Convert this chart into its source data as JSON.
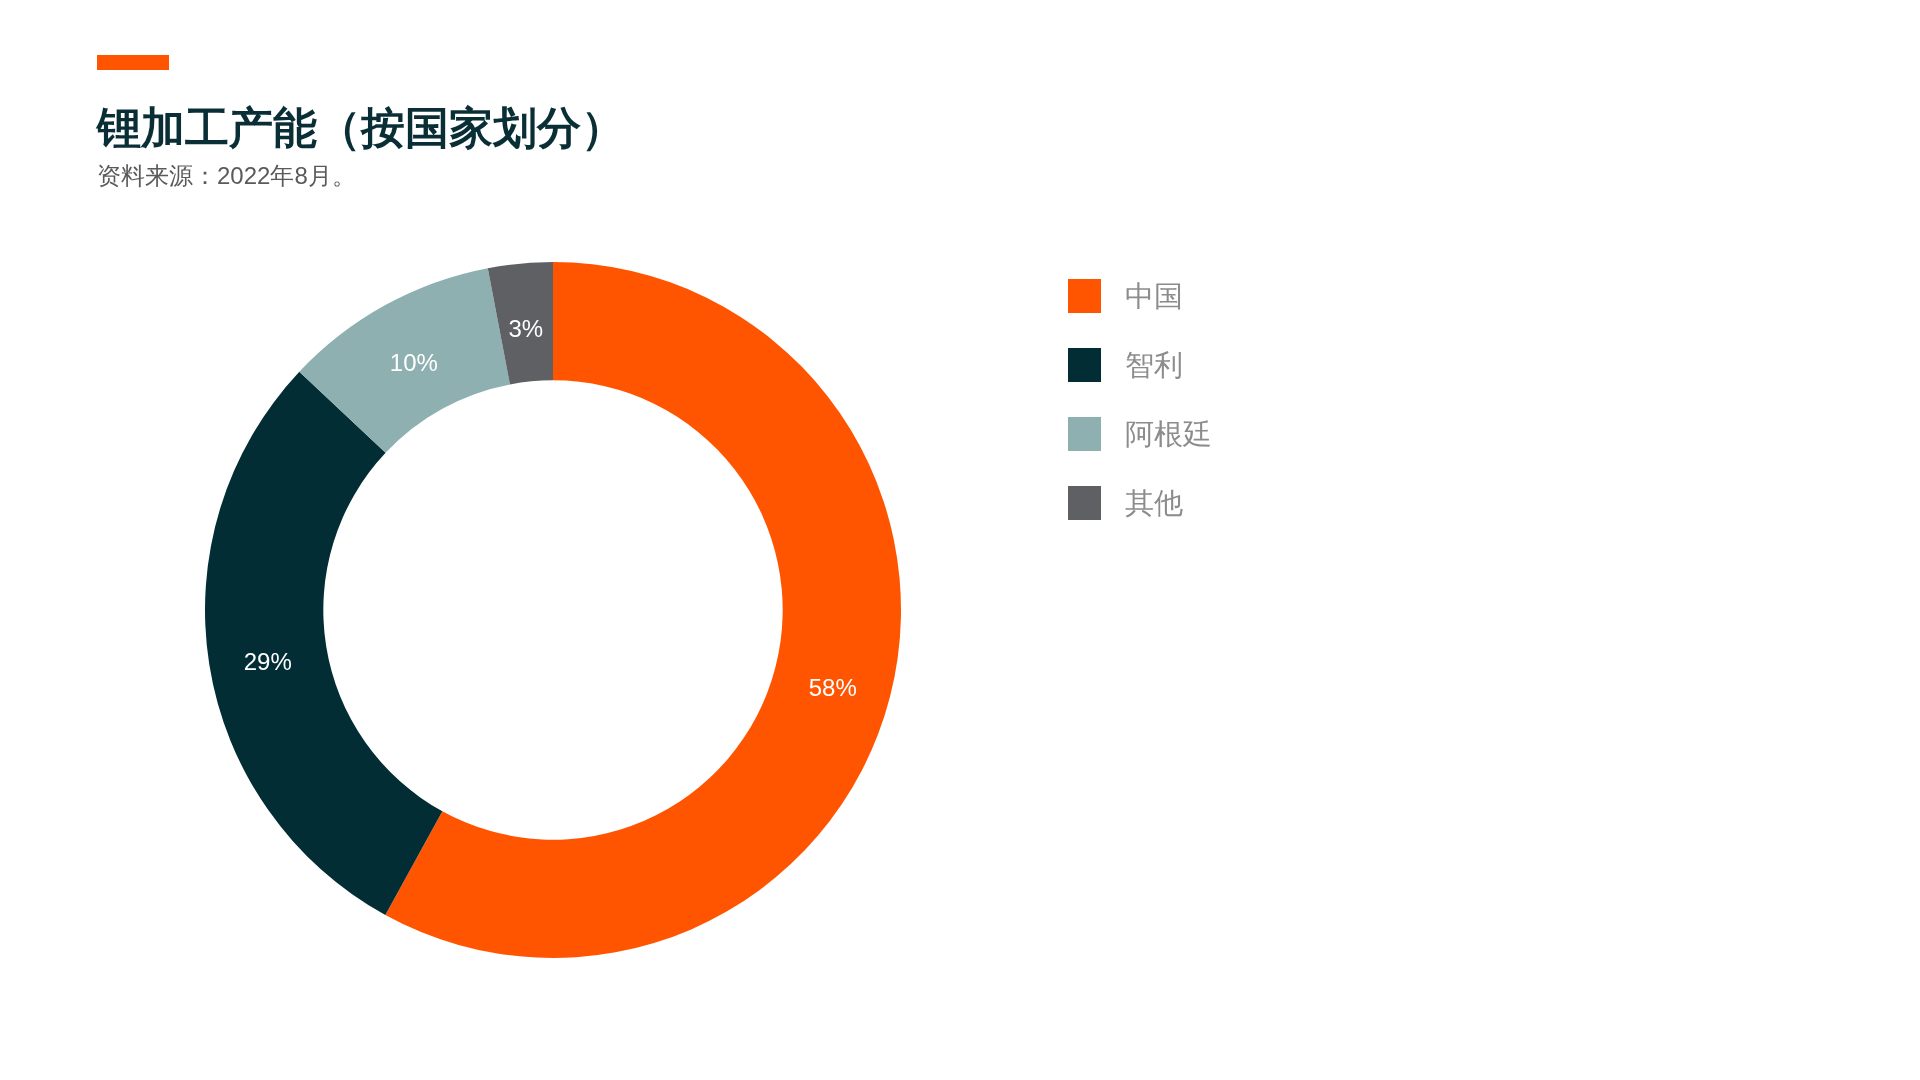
{
  "chart_data": {
    "type": "donut",
    "title": "锂加工产能（按国家划分）",
    "annotations": [
      "资料来源：2022年8月。"
    ],
    "categories": [
      "中国",
      "智利",
      "阿根廷",
      "其他"
    ],
    "values": [
      58,
      29,
      10,
      3
    ],
    "colors": [
      "#ff5500",
      "#022d35",
      "#8fb0b0",
      "#5f6064"
    ],
    "value_labels": [
      "58%",
      "29%",
      "10%",
      "3%"
    ],
    "legend": "right"
  }
}
